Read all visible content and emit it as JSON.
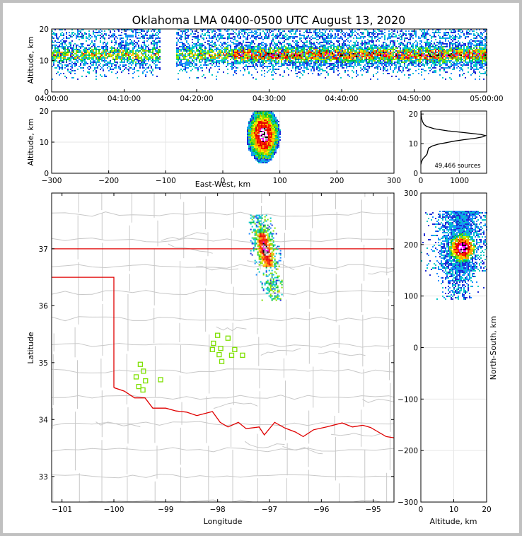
{
  "chart_data": [
    {
      "id": "time-height",
      "type": "heatmap",
      "title": "Oklahoma LMA 0400-0500 UTC August 13, 2020",
      "ylabel": "Altitude, km",
      "xlabel": "",
      "ylim": [
        0,
        20
      ],
      "yticks": [
        "0",
        "10",
        "20"
      ],
      "xticks": [
        "04:00:00",
        "04:10:00",
        "04:20:00",
        "04:30:00",
        "04:40:00",
        "04:50:00",
        "05:00:00"
      ],
      "band_km": [
        5,
        20
      ],
      "core_km": [
        10,
        14
      ],
      "gap_minutes": [
        15,
        17
      ],
      "intensifies_after_minute": 25
    },
    {
      "id": "ew-altitude",
      "type": "heatmap",
      "ylabel": "Altitude, km",
      "xlabel": "East-West, km",
      "xlim": [
        -300,
        300
      ],
      "ylim": [
        0,
        20
      ],
      "xticks": [
        "−300",
        "−200",
        "−100",
        "0",
        "100",
        "200",
        "300"
      ],
      "yticks": [
        "0",
        "10",
        "20"
      ],
      "cell_ew_km": [
        40,
        110
      ],
      "cell_alt_km": [
        3,
        20
      ],
      "core": {
        "ew_km": 70,
        "alt_km": 12.5
      }
    },
    {
      "id": "altitude-histogram",
      "type": "line",
      "annotation": "49,466 sources",
      "xlim": [
        0,
        1700
      ],
      "ylim": [
        0,
        21
      ],
      "xticks": [
        "0",
        "1000"
      ],
      "yticks": [
        "0",
        "10",
        "20"
      ],
      "x": [
        0,
        20,
        60,
        120,
        160,
        180,
        200,
        300,
        450,
        650,
        850,
        1100,
        1400,
        1600,
        1670,
        1550,
        1200,
        700,
        350,
        150,
        80,
        40,
        20,
        10,
        0
      ],
      "y": [
        3,
        4,
        5,
        5.8,
        6.5,
        7.5,
        8.5,
        9.2,
        9.8,
        10.3,
        10.8,
        11.3,
        11.8,
        12.3,
        12.7,
        13.1,
        13.6,
        14.3,
        15.0,
        15.8,
        16.5,
        17.5,
        18.5,
        19.5,
        21
      ]
    },
    {
      "id": "plan-view",
      "type": "map",
      "xlabel": "Longitude",
      "ylabel": "Latitude",
      "xlim": [
        -101.2,
        -94.6
      ],
      "ylim": [
        32.55,
        37.98
      ],
      "xticks": [
        -101,
        -100,
        -99,
        -98,
        -97,
        -96,
        -95
      ],
      "yticks": [
        33,
        34,
        35,
        36,
        37
      ],
      "xtick_labels": [
        "−101",
        "−100",
        "−99",
        "−98",
        "−97",
        "−96",
        "−95"
      ],
      "ytick_labels": [
        "33",
        "34",
        "35",
        "36",
        "37"
      ],
      "state_lines": {
        "ks_border_lat": 37.0,
        "panhandle_lat": 36.5,
        "panhandle_lon": -100.0,
        "red_river": [
          [
            -100.0,
            34.56
          ],
          [
            -99.8,
            34.5
          ],
          [
            -99.6,
            34.38
          ],
          [
            -99.4,
            34.38
          ],
          [
            -99.25,
            34.2
          ],
          [
            -99.0,
            34.2
          ],
          [
            -98.8,
            34.15
          ],
          [
            -98.6,
            34.13
          ],
          [
            -98.4,
            34.07
          ],
          [
            -98.1,
            34.14
          ],
          [
            -97.95,
            33.95
          ],
          [
            -97.8,
            33.87
          ],
          [
            -97.6,
            33.95
          ],
          [
            -97.45,
            33.84
          ],
          [
            -97.2,
            33.87
          ],
          [
            -97.1,
            33.73
          ],
          [
            -96.9,
            33.95
          ],
          [
            -96.7,
            33.85
          ],
          [
            -96.5,
            33.78
          ],
          [
            -96.35,
            33.7
          ],
          [
            -96.15,
            33.82
          ],
          [
            -95.9,
            33.87
          ],
          [
            -95.6,
            33.94
          ],
          [
            -95.4,
            33.87
          ],
          [
            -95.2,
            33.9
          ],
          [
            -95.05,
            33.86
          ],
          [
            -94.9,
            33.78
          ],
          [
            -94.75,
            33.7
          ],
          [
            -94.6,
            33.68
          ]
        ]
      },
      "stations": [
        [
          -99.57,
          34.75
        ],
        [
          -99.52,
          34.58
        ],
        [
          -99.44,
          34.52
        ],
        [
          -99.49,
          34.97
        ],
        [
          -99.43,
          34.85
        ],
        [
          -99.39,
          34.68
        ],
        [
          -99.1,
          34.7
        ],
        [
          -98.08,
          35.34
        ],
        [
          -98.1,
          35.23
        ],
        [
          -98.0,
          35.48
        ],
        [
          -97.97,
          35.14
        ],
        [
          -97.94,
          35.25
        ],
        [
          -97.92,
          35.02
        ],
        [
          -97.8,
          35.43
        ],
        [
          -97.73,
          35.13
        ],
        [
          -97.67,
          35.23
        ],
        [
          -97.52,
          35.13
        ]
      ],
      "storm": {
        "lon_range": [
          -97.4,
          -96.75
        ],
        "lat_range": [
          36.1,
          37.6
        ]
      }
    },
    {
      "id": "ns-altitude",
      "type": "heatmap",
      "ylabel": "North-South, km",
      "xlabel": "Altitude, km",
      "xlim": [
        0,
        20
      ],
      "ylim": [
        -300,
        300
      ],
      "xticks": [
        "0",
        "10",
        "20"
      ],
      "yticks": [
        "−300",
        "−200",
        "−100",
        "0",
        "100",
        "200",
        "300"
      ],
      "cell_ns_km": [
        95,
        265
      ],
      "core": {
        "alt_km": 12.5,
        "ns_km": 195
      }
    }
  ]
}
